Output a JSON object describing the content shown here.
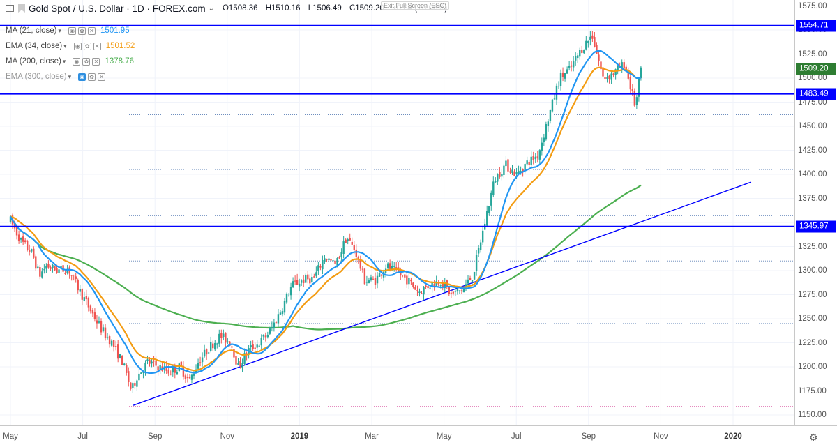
{
  "header": {
    "title": "Gold Spot / U.S. Dollar · 1D · FOREX.com",
    "open": "O1508.36",
    "high": "H1510.16",
    "low": "L1506.49",
    "close": "C1509.20",
    "change": "+0.84 (+0.06%)",
    "exit_fullscreen": "Exit Full Screen (ESC)"
  },
  "indicators": [
    {
      "name": "MA (21, close)",
      "value": "1501.95",
      "color": "#2196f3"
    },
    {
      "name": "EMA (34, close)",
      "value": "1501.52",
      "color": "#f39c12"
    },
    {
      "name": "MA (200, close)",
      "value": "1378.76",
      "color": "#4caf50"
    },
    {
      "name": "EMA (300, close)",
      "value": "",
      "color": "#999999"
    }
  ],
  "chart_data": {
    "type": "candlestick",
    "symbol": "Gold Spot / U.S. Dollar",
    "timeframe": "1D",
    "y_ticks": [
      1575.0,
      1550.0,
      1525.0,
      1500.0,
      1475.0,
      1450.0,
      1425.0,
      1400.0,
      1375.0,
      1350.0,
      1325.0,
      1300.0,
      1275.0,
      1250.0,
      1225.0,
      1200.0,
      1175.0,
      1150.0
    ],
    "y_tick_labels": [
      "1575.00",
      "1550.00",
      "1525.00",
      "1500.00",
      "1475.00",
      "1450.00",
      "1425.00",
      "1400.00",
      "1375.00",
      "",
      "1325.00",
      "1300.00",
      "1275.00",
      "1250.00",
      "1225.00",
      "1200.00",
      "1175.00",
      "1150.00"
    ],
    "ylim": [
      1145,
      1580
    ],
    "x_labels": [
      "May",
      "Jul",
      "Sep",
      "Nov",
      "2019",
      "Mar",
      "May",
      "Jul",
      "Sep",
      "Nov",
      "2020"
    ],
    "x_label_month_index": [
      0,
      2,
      4,
      6,
      8,
      10,
      12,
      14,
      16,
      18,
      20
    ],
    "xlim_months": [
      0,
      20.5
    ],
    "horizontal_levels": [
      {
        "label": "1554.71",
        "value": 1554.71,
        "color": "#0000ff"
      },
      {
        "label": "1483.49",
        "value": 1483.49,
        "color": "#0000ff"
      },
      {
        "label": "1345.97",
        "value": 1345.97,
        "color": "#0000ff"
      }
    ],
    "last_price": {
      "label": "1509.20",
      "value": 1509.2,
      "color": "#2e7d32"
    },
    "dotted_levels": [
      1462,
      1405,
      1357,
      1310,
      1245,
      1204
    ],
    "pink_level": 1159,
    "trendline": {
      "points": [
        [
          3.4,
          1160
        ],
        [
          20.5,
          1392
        ]
      ],
      "color": "#0000ff"
    },
    "price_path": [
      [
        0.0,
        1352
      ],
      [
        0.3,
        1330
      ],
      [
        0.6,
        1318
      ],
      [
        0.8,
        1295
      ],
      [
        1.0,
        1305
      ],
      [
        1.3,
        1300
      ],
      [
        1.6,
        1302
      ],
      [
        1.9,
        1280
      ],
      [
        2.2,
        1260
      ],
      [
        2.5,
        1240
      ],
      [
        2.8,
        1225
      ],
      [
        3.1,
        1205
      ],
      [
        3.35,
        1175
      ],
      [
        3.5,
        1190
      ],
      [
        3.8,
        1205
      ],
      [
        4.1,
        1200
      ],
      [
        4.4,
        1195
      ],
      [
        4.7,
        1200
      ],
      [
        4.95,
        1185
      ],
      [
        5.2,
        1205
      ],
      [
        5.5,
        1220
      ],
      [
        5.8,
        1232
      ],
      [
        6.1,
        1225
      ],
      [
        6.3,
        1200
      ],
      [
        6.6,
        1218
      ],
      [
        6.9,
        1225
      ],
      [
        7.2,
        1238
      ],
      [
        7.5,
        1260
      ],
      [
        7.8,
        1285
      ],
      [
        8.1,
        1290
      ],
      [
        8.4,
        1292
      ],
      [
        8.7,
        1315
      ],
      [
        9.0,
        1305
      ],
      [
        9.3,
        1335
      ],
      [
        9.55,
        1320
      ],
      [
        9.8,
        1290
      ],
      [
        10.1,
        1290
      ],
      [
        10.4,
        1305
      ],
      [
        10.7,
        1298
      ],
      [
        11.0,
        1290
      ],
      [
        11.3,
        1278
      ],
      [
        11.6,
        1285
      ],
      [
        11.9,
        1290
      ],
      [
        12.2,
        1275
      ],
      [
        12.5,
        1280
      ],
      [
        12.8,
        1295
      ],
      [
        13.1,
        1345
      ],
      [
        13.4,
        1395
      ],
      [
        13.7,
        1410
      ],
      [
        14.0,
        1400
      ],
      [
        14.3,
        1412
      ],
      [
        14.6,
        1420
      ],
      [
        14.9,
        1460
      ],
      [
        15.2,
        1500
      ],
      [
        15.5,
        1510
      ],
      [
        15.8,
        1530
      ],
      [
        16.1,
        1545
      ],
      [
        16.4,
        1500
      ],
      [
        16.7,
        1505
      ],
      [
        17.0,
        1515
      ],
      [
        17.3,
        1470
      ],
      [
        17.45,
        1510
      ]
    ]
  },
  "ui": {
    "settings_icon": "gear-icon"
  }
}
